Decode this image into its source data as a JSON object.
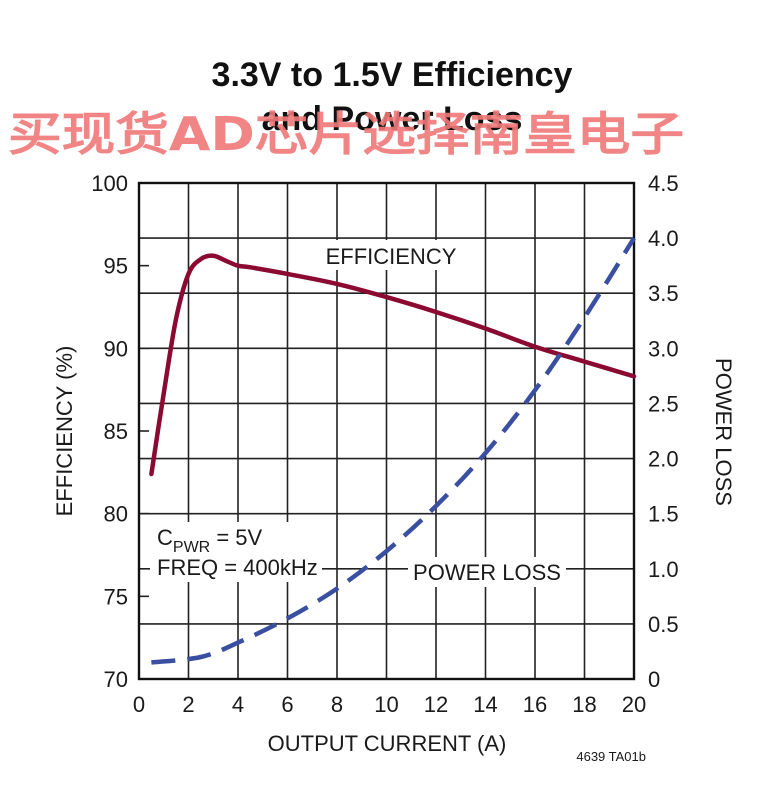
{
  "chart_data": {
    "type": "line",
    "title_line1": "3.3V to 1.5V Efficiency",
    "title_line2": "and Power Loss",
    "xlabel": "OUTPUT CURRENT (A)",
    "ylabel": "EFFICIENCY (%)",
    "y2label": "POWER LOSS",
    "xlim": [
      0,
      20
    ],
    "ylim": [
      70,
      100
    ],
    "y2lim": [
      0,
      4.5
    ],
    "x_ticks": [
      "0",
      "2",
      "4",
      "6",
      "8",
      "10",
      "12",
      "14",
      "16",
      "18",
      "20"
    ],
    "y_ticks": [
      "70",
      "75",
      "80",
      "85",
      "90",
      "95",
      "100"
    ],
    "y2_ticks": [
      "0",
      "0.5",
      "1.0",
      "1.5",
      "2.0",
      "2.5",
      "3.0",
      "3.5",
      "4.0",
      "4.5"
    ],
    "grid": true,
    "annotations": {
      "efficiency_label": "EFFICIENCY",
      "power_loss_label": "POWER LOSS",
      "cpwr_prefix": "C",
      "cpwr_sub": "PWR",
      "cpwr_value": " = 5V",
      "freq": "FREQ = 400kHz"
    },
    "figure_code": "4639 TA01b",
    "series": [
      {
        "key": "efficiency",
        "axis": "left",
        "color": "#8b0a32",
        "style": "solid",
        "x": [
          0.5,
          1.0,
          1.5,
          2.0,
          2.5,
          3.0,
          3.5,
          4.0,
          4.5,
          6,
          8,
          10,
          12,
          14,
          16,
          18,
          20
        ],
        "y": [
          82.4,
          87.3,
          91.8,
          94.5,
          95.4,
          95.6,
          95.3,
          95.0,
          94.9,
          94.5,
          93.9,
          93.1,
          92.2,
          91.2,
          90.1,
          89.2,
          88.3
        ]
      },
      {
        "key": "power_loss",
        "axis": "right",
        "color": "#3a4fa0",
        "style": "dashed",
        "x": [
          0.5,
          2.5,
          4,
          6,
          8,
          10,
          12,
          14,
          16,
          18,
          20
        ],
        "y": [
          0.15,
          0.2,
          0.33,
          0.55,
          0.82,
          1.16,
          1.57,
          2.05,
          2.62,
          3.28,
          4.0
        ]
      }
    ]
  },
  "watermark": "买现货AD芯片选择南皇电子"
}
